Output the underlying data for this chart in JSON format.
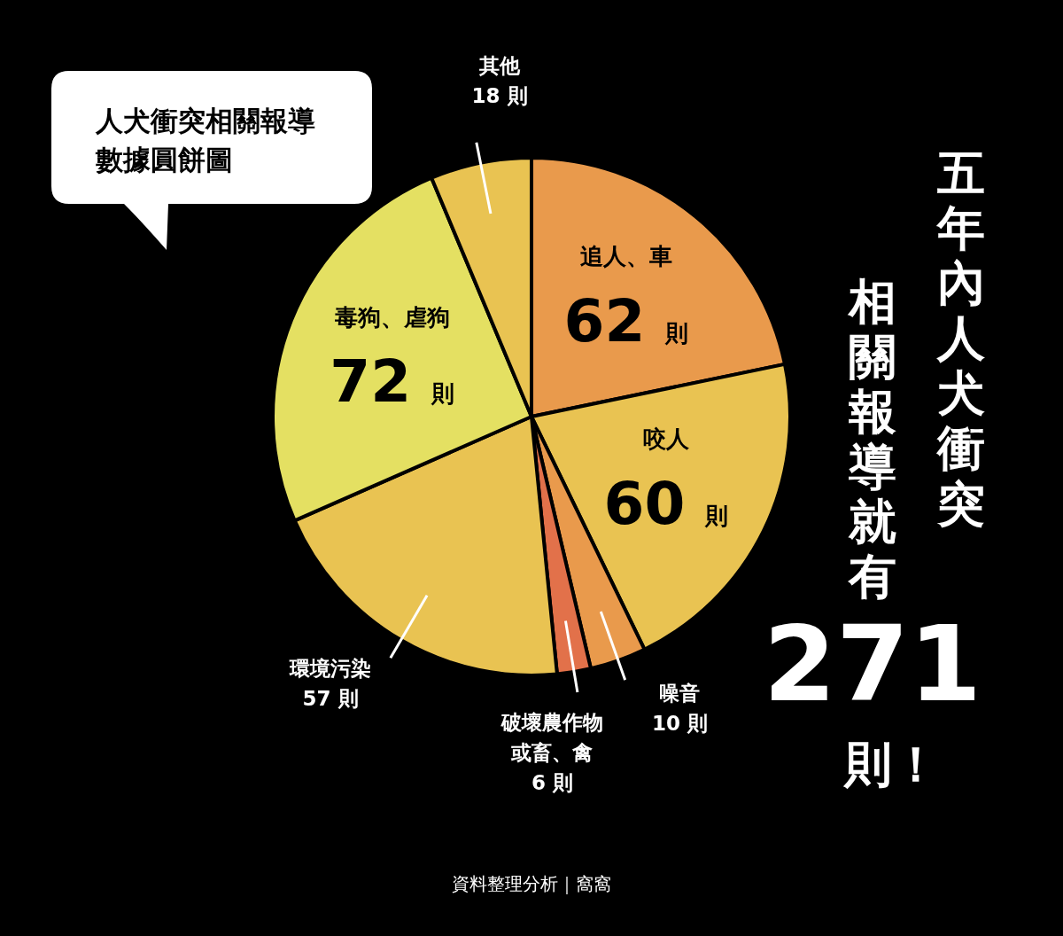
{
  "chart_data": {
    "type": "pie",
    "title": "人犬衝突相關報導數據圓餅圖",
    "subtitle": "五年內人犬衝突相關報導就有271則！",
    "categories": [
      "追人、車",
      "咬人",
      "噪音",
      "破壞農作物或畜、禽",
      "環境污染",
      "毒狗、虐狗",
      "其他"
    ],
    "values": [
      62,
      60,
      10,
      6,
      57,
      72,
      18
    ],
    "value_labels": [
      "62 則",
      "60 則",
      "10 則",
      "6 則",
      "57 則",
      "72 則",
      "18 則"
    ],
    "colors": [
      "#e99a4c",
      "#e9c352",
      "#e99a4c",
      "#e2714a",
      "#e9c352",
      "#e4e062",
      "#e9c352"
    ],
    "annotations": [
      "資料整理分析｜窩窩"
    ]
  }
}
